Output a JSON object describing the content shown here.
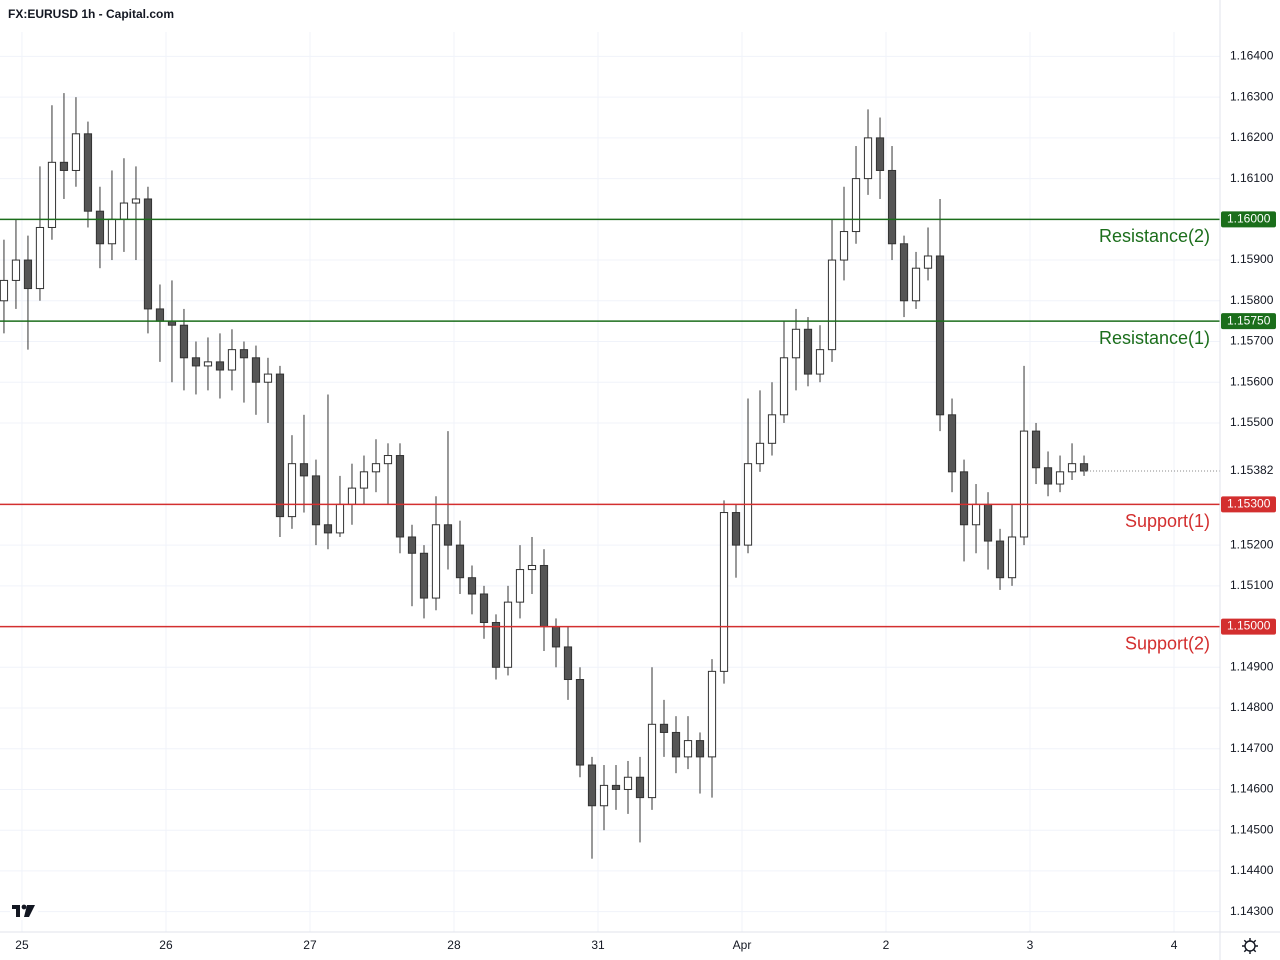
{
  "chart_data": {
    "type": "candlestick",
    "title": "FX:EURUSD 1h - Capital.com",
    "up_color": "#ffffff",
    "down_color": "#555555",
    "edge_color": "#333333",
    "grid": true,
    "xlim": [
      -0.33,
      101.33
    ],
    "xticks": [
      {
        "value": 1.5,
        "label": "25"
      },
      {
        "value": 13.5,
        "label": "26"
      },
      {
        "value": 25.5,
        "label": "27"
      },
      {
        "value": 37.5,
        "label": "28"
      },
      {
        "value": 49.5,
        "label": "31"
      },
      {
        "value": 61.5,
        "label": "Apr"
      },
      {
        "value": 73.5,
        "label": "2"
      },
      {
        "value": 85.5,
        "label": "3"
      },
      {
        "value": 97.5,
        "label": "4"
      }
    ],
    "ylim": [
      1.1425,
      1.1646
    ],
    "yticks": [
      {
        "value": 1.164,
        "label": "1.16400"
      },
      {
        "value": 1.163,
        "label": "1.16300"
      },
      {
        "value": 1.162,
        "label": "1.16200"
      },
      {
        "value": 1.161,
        "label": "1.16100"
      },
      {
        "value": 1.159,
        "label": "1.15900"
      },
      {
        "value": 1.158,
        "label": "1.15800"
      },
      {
        "value": 1.157,
        "label": "1.15700"
      },
      {
        "value": 1.156,
        "label": "1.15600"
      },
      {
        "value": 1.155,
        "label": "1.15500"
      },
      {
        "value": 1.152,
        "label": "1.15200"
      },
      {
        "value": 1.151,
        "label": "1.15100"
      },
      {
        "value": 1.149,
        "label": "1.14900"
      },
      {
        "value": 1.148,
        "label": "1.14800"
      },
      {
        "value": 1.147,
        "label": "1.14700"
      },
      {
        "value": 1.146,
        "label": "1.14600"
      },
      {
        "value": 1.145,
        "label": "1.14500"
      },
      {
        "value": 1.144,
        "label": "1.14400"
      },
      {
        "value": 1.143,
        "label": "1.14300"
      }
    ],
    "levels": [
      {
        "name": "Resistance(2)",
        "value": 1.16,
        "label": "1.16000",
        "color": "#1b6e1b"
      },
      {
        "name": "Resistance(1)",
        "value": 1.1575,
        "label": "1.15750",
        "color": "#1b6e1b"
      },
      {
        "name": "Support(1)",
        "value": 1.153,
        "label": "1.15300",
        "color": "#d32f2f"
      },
      {
        "name": "Support(2)",
        "value": 1.15,
        "label": "1.15000",
        "color": "#d32f2f"
      }
    ],
    "ohlc": [
      [
        1.158,
        1.1595,
        1.1572,
        1.1585
      ],
      [
        1.1585,
        1.16,
        1.1578,
        1.159
      ],
      [
        1.159,
        1.1596,
        1.1568,
        1.1583
      ],
      [
        1.1583,
        1.1613,
        1.158,
        1.1598
      ],
      [
        1.1598,
        1.1628,
        1.1595,
        1.1614
      ],
      [
        1.1614,
        1.1631,
        1.1605,
        1.1612
      ],
      [
        1.1612,
        1.163,
        1.1608,
        1.1621
      ],
      [
        1.1621,
        1.1624,
        1.1598,
        1.1602
      ],
      [
        1.1602,
        1.1608,
        1.1588,
        1.1594
      ],
      [
        1.1594,
        1.1612,
        1.159,
        1.16
      ],
      [
        1.16,
        1.1615,
        1.1592,
        1.1604
      ],
      [
        1.1604,
        1.1613,
        1.159,
        1.1605
      ],
      [
        1.1605,
        1.1608,
        1.1572,
        1.1578
      ],
      [
        1.1578,
        1.1584,
        1.1565,
        1.1575
      ],
      [
        1.1575,
        1.1585,
        1.156,
        1.1574
      ],
      [
        1.1574,
        1.1578,
        1.1558,
        1.1566
      ],
      [
        1.1566,
        1.157,
        1.1557,
        1.1564
      ],
      [
        1.1564,
        1.1571,
        1.1558,
        1.1565
      ],
      [
        1.1565,
        1.1572,
        1.1556,
        1.1563
      ],
      [
        1.1563,
        1.1573,
        1.1558,
        1.1568
      ],
      [
        1.1568,
        1.157,
        1.1555,
        1.1566
      ],
      [
        1.1566,
        1.1569,
        1.1552,
        1.156
      ],
      [
        1.156,
        1.1566,
        1.155,
        1.1562
      ],
      [
        1.1562,
        1.1564,
        1.1522,
        1.1527
      ],
      [
        1.1527,
        1.1547,
        1.1524,
        1.154
      ],
      [
        1.154,
        1.1552,
        1.1528,
        1.1537
      ],
      [
        1.1537,
        1.1541,
        1.152,
        1.1525
      ],
      [
        1.1525,
        1.1557,
        1.1519,
        1.1523
      ],
      [
        1.1523,
        1.1537,
        1.1522,
        1.153
      ],
      [
        1.153,
        1.154,
        1.1525,
        1.1534
      ],
      [
        1.1534,
        1.1542,
        1.153,
        1.1538
      ],
      [
        1.1538,
        1.1546,
        1.1533,
        1.154
      ],
      [
        1.154,
        1.1545,
        1.153,
        1.1542
      ],
      [
        1.1542,
        1.1545,
        1.1518,
        1.1522
      ],
      [
        1.1522,
        1.1525,
        1.1505,
        1.1518
      ],
      [
        1.1518,
        1.152,
        1.1502,
        1.1507
      ],
      [
        1.1507,
        1.1532,
        1.1504,
        1.1525
      ],
      [
        1.1525,
        1.1548,
        1.1514,
        1.152
      ],
      [
        1.152,
        1.1526,
        1.1508,
        1.1512
      ],
      [
        1.1512,
        1.1515,
        1.1503,
        1.1508
      ],
      [
        1.1508,
        1.151,
        1.1497,
        1.1501
      ],
      [
        1.1501,
        1.1503,
        1.1487,
        1.149
      ],
      [
        1.149,
        1.151,
        1.1488,
        1.1506
      ],
      [
        1.1506,
        1.152,
        1.1502,
        1.1514
      ],
      [
        1.1514,
        1.1522,
        1.1508,
        1.1515
      ],
      [
        1.1515,
        1.1519,
        1.1494,
        1.15
      ],
      [
        1.15,
        1.1502,
        1.149,
        1.1495
      ],
      [
        1.1495,
        1.15,
        1.1482,
        1.1487
      ],
      [
        1.1487,
        1.149,
        1.1463,
        1.1466
      ],
      [
        1.1466,
        1.1468,
        1.1443,
        1.1456
      ],
      [
        1.1456,
        1.1466,
        1.145,
        1.1461
      ],
      [
        1.1461,
        1.1466,
        1.1455,
        1.146
      ],
      [
        1.146,
        1.1467,
        1.1454,
        1.1463
      ],
      [
        1.1463,
        1.1468,
        1.1447,
        1.1458
      ],
      [
        1.1458,
        1.149,
        1.1455,
        1.1476
      ],
      [
        1.1476,
        1.1482,
        1.1468,
        1.1474
      ],
      [
        1.1474,
        1.1478,
        1.1464,
        1.1468
      ],
      [
        1.1468,
        1.1478,
        1.1465,
        1.1472
      ],
      [
        1.1472,
        1.1474,
        1.1459,
        1.1468
      ],
      [
        1.1468,
        1.1492,
        1.1458,
        1.1489
      ],
      [
        1.1489,
        1.1531,
        1.1486,
        1.1528
      ],
      [
        1.1528,
        1.153,
        1.1512,
        1.152
      ],
      [
        1.152,
        1.1556,
        1.1518,
        1.154
      ],
      [
        1.154,
        1.1558,
        1.1538,
        1.1545
      ],
      [
        1.1545,
        1.156,
        1.1542,
        1.1552
      ],
      [
        1.1552,
        1.1575,
        1.155,
        1.1566
      ],
      [
        1.1566,
        1.1578,
        1.1558,
        1.1573
      ],
      [
        1.1573,
        1.1576,
        1.1559,
        1.1562
      ],
      [
        1.1562,
        1.1574,
        1.156,
        1.1568
      ],
      [
        1.1568,
        1.16,
        1.1565,
        1.159
      ],
      [
        1.159,
        1.1608,
        1.1585,
        1.1597
      ],
      [
        1.1597,
        1.1618,
        1.1594,
        1.161
      ],
      [
        1.161,
        1.1627,
        1.1606,
        1.162
      ],
      [
        1.162,
        1.1625,
        1.1605,
        1.1612
      ],
      [
        1.1612,
        1.1618,
        1.159,
        1.1594
      ],
      [
        1.1594,
        1.1596,
        1.1576,
        1.158
      ],
      [
        1.158,
        1.1592,
        1.1578,
        1.1588
      ],
      [
        1.1588,
        1.1598,
        1.1585,
        1.1591
      ],
      [
        1.1591,
        1.1605,
        1.1548,
        1.1552
      ],
      [
        1.1552,
        1.1556,
        1.1533,
        1.1538
      ],
      [
        1.1538,
        1.1541,
        1.1516,
        1.1525
      ],
      [
        1.1525,
        1.1535,
        1.1518,
        1.153
      ],
      [
        1.153,
        1.1533,
        1.1514,
        1.1521
      ],
      [
        1.1521,
        1.1524,
        1.1509,
        1.1512
      ],
      [
        1.1512,
        1.153,
        1.151,
        1.1522
      ],
      [
        1.1522,
        1.1564,
        1.152,
        1.1548
      ],
      [
        1.1548,
        1.155,
        1.1535,
        1.1539
      ],
      [
        1.1539,
        1.1543,
        1.1532,
        1.1535
      ],
      [
        1.1535,
        1.1542,
        1.1533,
        1.1538
      ],
      [
        1.1538,
        1.1545,
        1.1536,
        1.154
      ],
      [
        1.154,
        1.1542,
        1.1537,
        1.15382
      ]
    ]
  }
}
